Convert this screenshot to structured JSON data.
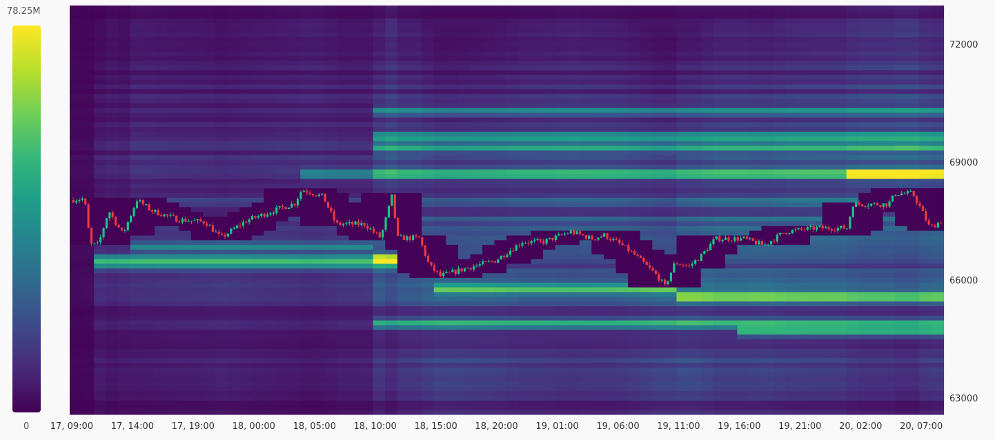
{
  "chart_data": {
    "type": "heatmap",
    "overlay": "candlestick",
    "title": "",
    "xlabel": "",
    "ylabel": "",
    "xlim": [
      "17, 08:50",
      "20, 08:45"
    ],
    "ylim": [
      62580,
      72980
    ],
    "x_ticks": [
      "17, 09:00",
      "17, 14:00",
      "17, 19:00",
      "18, 00:00",
      "18, 05:00",
      "18, 10:00",
      "18, 15:00",
      "18, 20:00",
      "19, 01:00",
      "19, 06:00",
      "19, 11:00",
      "19, 16:00",
      "19, 21:00",
      "20, 02:00",
      "20, 07:00"
    ],
    "y_ticks": [
      72000,
      69000,
      66000,
      63000
    ],
    "y_tick_labels": [
      "72000",
      "69000",
      "66000",
      "63000"
    ],
    "colorscale": "viridis",
    "colorbar": {
      "max_label": "78.25M",
      "min_label": "0",
      "max": 78.25,
      "min": 0,
      "unit": "M"
    },
    "colors": {
      "up": "#16c784",
      "down": "#ea3943",
      "cleared": "#440154",
      "background": "#f9f9f9"
    },
    "grid": false,
    "price_path": [
      {
        "t": "17, 09:00",
        "price": 68035
      },
      {
        "t": "17, 10:10",
        "price": 68070
      },
      {
        "t": "17, 10:40",
        "price": 66900
      },
      {
        "t": "17, 11:20",
        "price": 66900
      },
      {
        "t": "17, 12:10",
        "price": 67770
      },
      {
        "t": "17, 13:20",
        "price": 67160
      },
      {
        "t": "17, 14:30",
        "price": 68040
      },
      {
        "t": "17, 15:40",
        "price": 67770
      },
      {
        "t": "17, 17:50",
        "price": 67540
      },
      {
        "t": "17, 20:10",
        "price": 67470
      },
      {
        "t": "17, 21:25",
        "price": 67070
      },
      {
        "t": "17, 23:30",
        "price": 67510
      },
      {
        "t": "18, 01:50",
        "price": 67770
      },
      {
        "t": "18, 03:30",
        "price": 67950
      },
      {
        "t": "18, 04:05",
        "price": 68300
      },
      {
        "t": "18, 05:50",
        "price": 68120
      },
      {
        "t": "18, 06:55",
        "price": 67420
      },
      {
        "t": "18, 09:15",
        "price": 67420
      },
      {
        "t": "18, 10:35",
        "price": 67070
      },
      {
        "t": "18, 11:30",
        "price": 68120
      },
      {
        "t": "18, 12:00",
        "price": 67070
      },
      {
        "t": "18, 13:45",
        "price": 67070
      },
      {
        "t": "18, 14:35",
        "price": 66370
      },
      {
        "t": "18, 15:30",
        "price": 66100
      },
      {
        "t": "18, 17:45",
        "price": 66310
      },
      {
        "t": "18, 20:00",
        "price": 66490
      },
      {
        "t": "18, 22:15",
        "price": 66970
      },
      {
        "t": "19, 00:00",
        "price": 66970
      },
      {
        "t": "19, 02:15",
        "price": 67230
      },
      {
        "t": "19, 04:00",
        "price": 67050
      },
      {
        "t": "19, 05:00",
        "price": 67140
      },
      {
        "t": "19, 06:30",
        "price": 66880
      },
      {
        "t": "19, 07:35",
        "price": 66620
      },
      {
        "t": "19, 09:25",
        "price": 66090
      },
      {
        "t": "19, 10:00",
        "price": 65830
      },
      {
        "t": "19, 10:50",
        "price": 66440
      },
      {
        "t": "19, 12:00",
        "price": 66350
      },
      {
        "t": "19, 13:00",
        "price": 66620
      },
      {
        "t": "19, 14:10",
        "price": 67050
      },
      {
        "t": "19, 16:30",
        "price": 67050
      },
      {
        "t": "19, 18:10",
        "price": 66880
      },
      {
        "t": "19, 19:55",
        "price": 67230
      },
      {
        "t": "19, 22:25",
        "price": 67320
      },
      {
        "t": "20, 01:00",
        "price": 67320
      },
      {
        "t": "20, 01:30",
        "price": 67930
      },
      {
        "t": "20, 04:25",
        "price": 67930
      },
      {
        "t": "20, 05:00",
        "price": 68200
      },
      {
        "t": "20, 06:25",
        "price": 68200
      },
      {
        "t": "20, 07:10",
        "price": 67760
      },
      {
        "t": "20, 07:50",
        "price": 67320
      },
      {
        "t": "20, 08:40",
        "price": 67490
      }
    ],
    "clusters": [
      {
        "price": 66530,
        "value": 40,
        "start": "17, 10:30",
        "end": "18, 10:00"
      },
      {
        "price": 66530,
        "value": 78,
        "start": "18, 10:00",
        "end": "18, 15:00"
      },
      {
        "price": 66380,
        "value": 30,
        "start": "17, 10:30",
        "end": "18, 14:00"
      },
      {
        "price": 66850,
        "value": 26,
        "start": "17, 14:00",
        "end": "18, 10:00"
      },
      {
        "price": 68700,
        "value": 30,
        "start": "18, 04:00",
        "end": "18, 10:00"
      },
      {
        "price": 68700,
        "value": 46,
        "start": "18, 10:00",
        "end": "20, 01:00"
      },
      {
        "price": 68700,
        "value": 76,
        "start": "20, 01:00",
        "end": "20, 08:45"
      },
      {
        "price": 69650,
        "value": 38,
        "start": "18, 10:00",
        "end": "20, 08:45"
      },
      {
        "price": 69350,
        "value": 30,
        "start": "18, 10:00",
        "end": "20, 08:45"
      },
      {
        "price": 70300,
        "value": 26,
        "start": "18, 10:00",
        "end": "20, 08:45"
      },
      {
        "price": 65780,
        "value": 36,
        "start": "18, 15:00",
        "end": "19, 11:00"
      },
      {
        "price": 65580,
        "value": 46,
        "start": "19, 11:00",
        "end": "20, 08:45"
      },
      {
        "price": 64900,
        "value": 34,
        "start": "18, 10:00",
        "end": "20, 08:45"
      },
      {
        "price": 64700,
        "value": 42,
        "start": "19, 16:00",
        "end": "20, 08:45"
      }
    ]
  }
}
